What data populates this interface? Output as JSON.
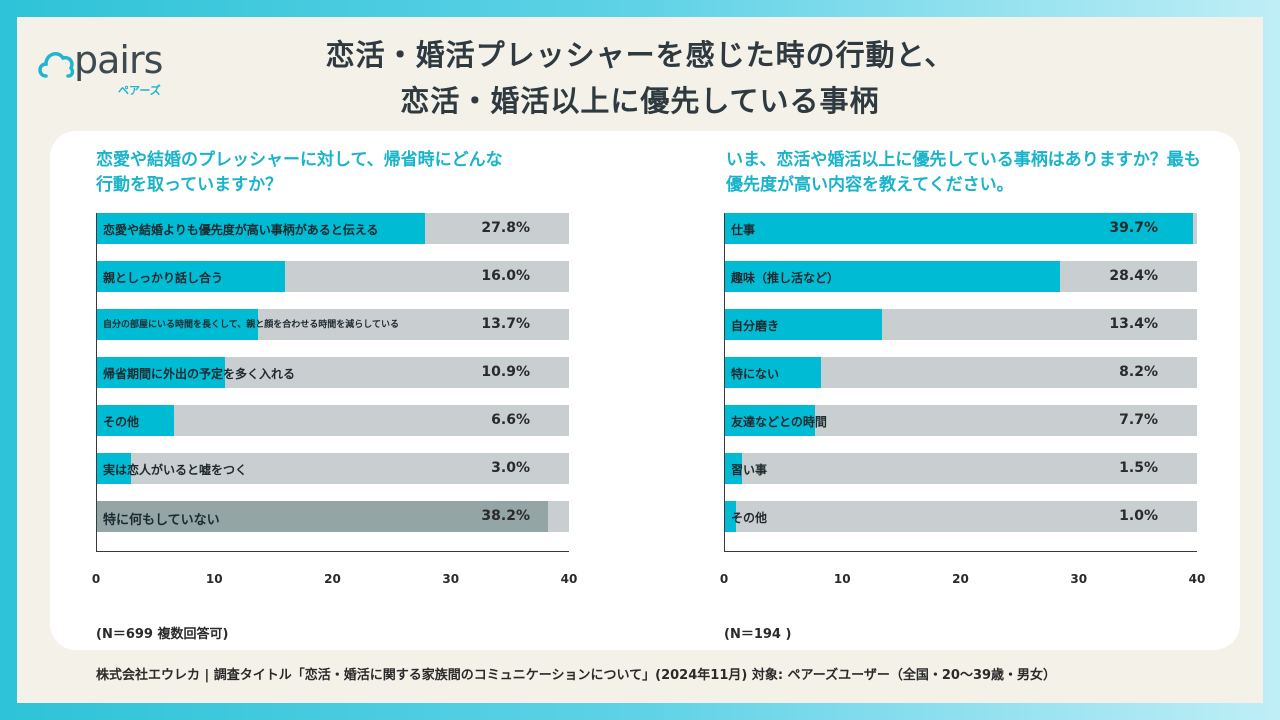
{
  "brand": {
    "name": "pairs",
    "sub": "ペアーズ"
  },
  "title_line1": "恋活・婚活プレッシャーを感じた時の行動と、",
  "title_line2": "恋活・婚活以上に優先している事柄",
  "colors": {
    "accent": "#00bbd4",
    "bar_bg": "#c9ced0",
    "highlight_gray": "#93a5a4"
  },
  "chart_data": [
    {
      "type": "bar",
      "orientation": "horizontal",
      "title": "恋愛や結婚のプレッシャーに対して、帰省時にどんな行動を取っていますか？",
      "title_lines": [
        "恋愛や結婚のプレッシャーに対して、帰省時にどんな",
        "行動を取っていますか？"
      ],
      "categories": [
        "恋愛や結婚よりも優先度が高い事柄があると伝える",
        "親としっかり話し合う",
        "自分の部屋にいる時間を長くして、親と顔を合わせる時間を減らしている",
        "帰省期間に外出の予定を多く入れる",
        "その他",
        "実は恋人がいると嘘をつく",
        "特に何もしていない"
      ],
      "values": [
        27.8,
        16.0,
        13.7,
        10.9,
        6.6,
        3.0,
        38.2
      ],
      "value_labels": [
        "27.8%",
        "16.0%",
        "13.7%",
        "10.9%",
        "6.6%",
        "3.0%",
        "38.2%"
      ],
      "xlim": [
        0,
        40
      ],
      "xticks": [
        "0",
        "10",
        "20",
        "30",
        "40"
      ],
      "note": "(N＝699 複数回答可)"
    },
    {
      "type": "bar",
      "orientation": "horizontal",
      "title": "いま、恋活や婚活以上に優先している事柄はありますか？最も優先度が高い内容を教えてください。",
      "title_lines": [
        "いま、恋活や婚活以上に優先している事柄はありますか？最も優先度が高い内容を教えてください。"
      ],
      "categories": [
        "仕事",
        "趣味（推し活など）",
        "自分磨き",
        "特にない",
        "友達などとの時間",
        "習い事",
        "その他"
      ],
      "values": [
        39.7,
        28.4,
        13.4,
        8.2,
        7.7,
        1.5,
        1.0
      ],
      "value_labels": [
        "39.7%",
        "28.4%",
        "13.4%",
        "8.2%",
        "7.7%",
        "1.5%",
        "1.0%"
      ],
      "xlim": [
        0,
        40
      ],
      "xticks": [
        "0",
        "10",
        "20",
        "30",
        "40"
      ],
      "note": "(N＝194 )"
    }
  ],
  "footer": "株式会社エウレカ | 調査タイトル「恋活・婚活に関する家族間のコミュニケーションについて」(2024年11月) 対象: ペアーズユーザー（全国・20〜39歳・男女）"
}
